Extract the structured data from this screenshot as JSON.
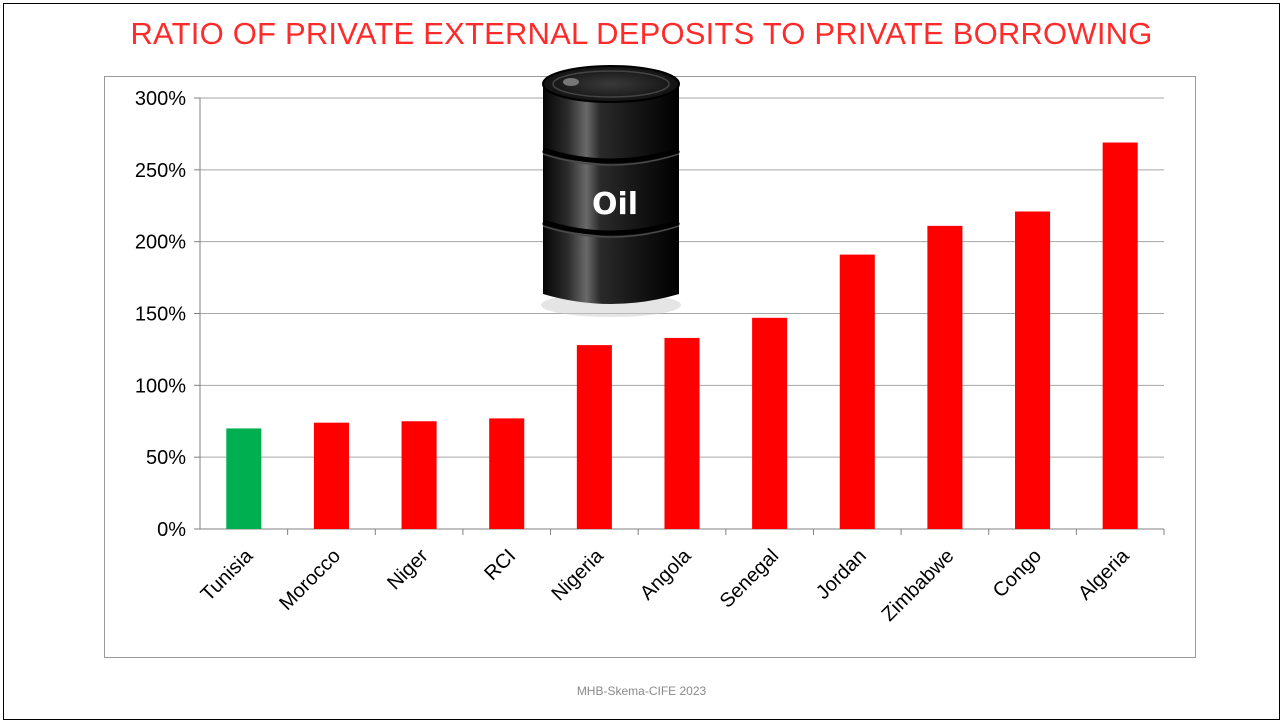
{
  "slide": {
    "title": "RATIO OF PRIVATE EXTERNAL DEPOSITS TO PRIVATE BORROWING",
    "footer": "MHB-Skema-CIFE 2023",
    "image_label": "Oil",
    "image_icon": "oil-barrel-icon"
  },
  "colors": {
    "title": "#ff2a2a",
    "highlight_bar": "#00b050",
    "bar": "#ff0000",
    "gridline": "#a6a6a6"
  },
  "chart_data": {
    "type": "bar",
    "title": "RATIO OF PRIVATE EXTERNAL DEPOSITS TO PRIVATE BORROWING",
    "xlabel": "",
    "ylabel": "",
    "categories": [
      "Tunisia",
      "Morocco",
      "Niger",
      "RCI",
      "Nigeria",
      "Angola",
      "Senegal",
      "Jordan",
      "Zimbabwe",
      "Congo",
      "Algeria"
    ],
    "values": [
      70,
      74,
      75,
      77,
      128,
      133,
      147,
      191,
      211,
      221,
      269
    ],
    "unit": "%",
    "highlight_category": "Tunisia",
    "ylim": [
      0,
      300
    ],
    "yticks": [
      0,
      50,
      100,
      150,
      200,
      250,
      300
    ],
    "ytick_labels": [
      "0%",
      "50%",
      "100%",
      "150%",
      "200%",
      "250%",
      "300%"
    ],
    "grid": true,
    "legend": "none"
  }
}
